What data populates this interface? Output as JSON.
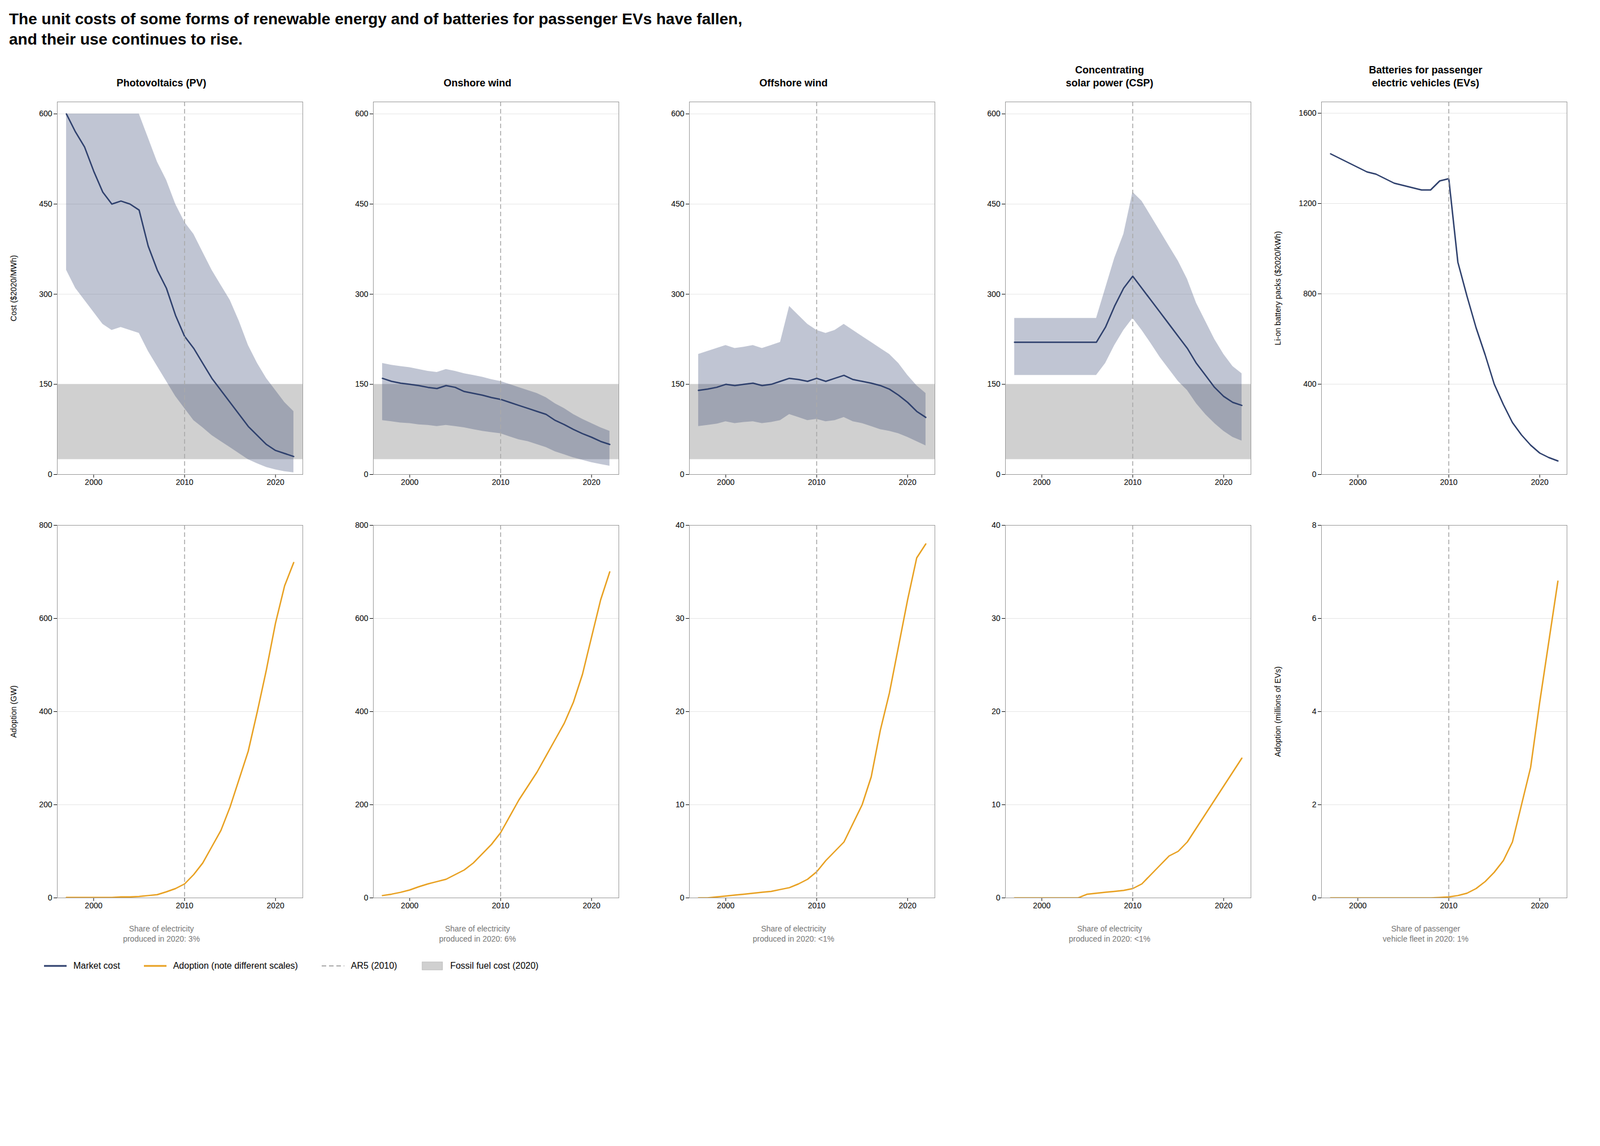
{
  "title": "The unit costs of some forms of renewable energy and of batteries for passenger EVs have fallen,\nand their use continues to rise.",
  "legend": "lower left",
  "chart_data": [
    {
      "type": "line",
      "title": "Photovoltaics (PV)",
      "ylabel": "Cost ($2020/MWh)",
      "x": [
        1997,
        1998,
        1999,
        2000,
        2001,
        2002,
        2003,
        2004,
        2005,
        2006,
        2007,
        2008,
        2009,
        2010,
        2011,
        2012,
        2013,
        2014,
        2015,
        2016,
        2017,
        2018,
        2019,
        2020,
        2021,
        2022
      ],
      "xlim": [
        1996,
        2023
      ],
      "xticks": [
        2000,
        2010,
        2020
      ],
      "ylim": [
        0,
        620
      ],
      "yticks": [
        0,
        150,
        300,
        450,
        600
      ],
      "grid": true,
      "series": [
        {
          "name": "Fossil fuel cost (2020)",
          "type": "band",
          "color": "#d0d0d0",
          "low": 25,
          "high": 150
        },
        {
          "name": "Market cost",
          "color": "#2d3f6c",
          "values": [
            600,
            570,
            545,
            505,
            470,
            450,
            455,
            450,
            440,
            380,
            340,
            310,
            265,
            230,
            210,
            185,
            160,
            140,
            120,
            100,
            80,
            65,
            50,
            40,
            35,
            30
          ],
          "upper": [
            600,
            600,
            600,
            600,
            600,
            600,
            600,
            600,
            600,
            560,
            520,
            490,
            450,
            420,
            400,
            370,
            340,
            315,
            290,
            255,
            215,
            185,
            160,
            140,
            120,
            105
          ],
          "lower": [
            340,
            310,
            290,
            270,
            250,
            240,
            245,
            240,
            235,
            205,
            180,
            155,
            130,
            110,
            90,
            78,
            65,
            55,
            45,
            35,
            25,
            18,
            12,
            8,
            5,
            3
          ]
        },
        {
          "name": "AR5 (2010)",
          "type": "rule",
          "color": "#aaaaaa",
          "line_style": "dashed",
          "x": 2010
        }
      ]
    },
    {
      "type": "line",
      "title": "Onshore wind",
      "x": [
        1997,
        1998,
        1999,
        2000,
        2001,
        2002,
        2003,
        2004,
        2005,
        2006,
        2007,
        2008,
        2009,
        2010,
        2011,
        2012,
        2013,
        2014,
        2015,
        2016,
        2017,
        2018,
        2019,
        2020,
        2021,
        2022
      ],
      "xlim": [
        1996,
        2023
      ],
      "xticks": [
        2000,
        2010,
        2020
      ],
      "ylim": [
        0,
        620
      ],
      "yticks": [
        0,
        150,
        300,
        450,
        600
      ],
      "grid": true,
      "series": [
        {
          "name": "Fossil fuel cost (2020)",
          "type": "band",
          "color": "#d0d0d0",
          "low": 25,
          "high": 150
        },
        {
          "name": "Market cost",
          "color": "#2d3f6c",
          "values": [
            160,
            155,
            152,
            150,
            148,
            145,
            143,
            148,
            145,
            138,
            135,
            132,
            128,
            125,
            120,
            115,
            110,
            105,
            100,
            90,
            83,
            75,
            68,
            62,
            55,
            50
          ],
          "upper": [
            185,
            182,
            180,
            178,
            175,
            172,
            170,
            175,
            172,
            168,
            165,
            162,
            158,
            155,
            150,
            145,
            140,
            135,
            128,
            118,
            110,
            100,
            92,
            85,
            78,
            72
          ],
          "lower": [
            90,
            88,
            86,
            85,
            83,
            82,
            80,
            82,
            80,
            78,
            75,
            72,
            70,
            68,
            63,
            58,
            55,
            50,
            45,
            38,
            33,
            28,
            24,
            20,
            17,
            14
          ]
        },
        {
          "name": "AR5 (2010)",
          "type": "rule",
          "color": "#aaaaaa",
          "line_style": "dashed",
          "x": 2010
        }
      ]
    },
    {
      "type": "line",
      "title": "Offshore wind",
      "x": [
        1997,
        1998,
        1999,
        2000,
        2001,
        2002,
        2003,
        2004,
        2005,
        2006,
        2007,
        2008,
        2009,
        2010,
        2011,
        2012,
        2013,
        2014,
        2015,
        2016,
        2017,
        2018,
        2019,
        2020,
        2021,
        2022
      ],
      "xlim": [
        1996,
        2023
      ],
      "xticks": [
        2000,
        2010,
        2020
      ],
      "ylim": [
        0,
        620
      ],
      "yticks": [
        0,
        150,
        300,
        450,
        600
      ],
      "grid": true,
      "series": [
        {
          "name": "Fossil fuel cost (2020)",
          "type": "band",
          "color": "#d0d0d0",
          "low": 25,
          "high": 150
        },
        {
          "name": "Market cost",
          "color": "#2d3f6c",
          "values": [
            140,
            142,
            145,
            150,
            148,
            150,
            152,
            148,
            150,
            155,
            160,
            158,
            155,
            160,
            155,
            160,
            165,
            158,
            155,
            152,
            148,
            142,
            132,
            120,
            105,
            95
          ],
          "upper": [
            200,
            205,
            210,
            215,
            210,
            212,
            215,
            210,
            215,
            220,
            280,
            265,
            250,
            240,
            235,
            240,
            250,
            240,
            230,
            220,
            210,
            200,
            185,
            165,
            148,
            135
          ],
          "lower": [
            80,
            82,
            84,
            88,
            85,
            87,
            88,
            85,
            87,
            90,
            100,
            95,
            90,
            92,
            88,
            90,
            95,
            88,
            85,
            80,
            75,
            72,
            68,
            62,
            55,
            48
          ]
        },
        {
          "name": "AR5 (2010)",
          "type": "rule",
          "color": "#aaaaaa",
          "line_style": "dashed",
          "x": 2010
        }
      ]
    },
    {
      "type": "line",
      "title": "Concentrating\nsolar power (CSP)",
      "x": [
        1997,
        1998,
        1999,
        2000,
        2001,
        2002,
        2003,
        2004,
        2005,
        2006,
        2007,
        2008,
        2009,
        2010,
        2011,
        2012,
        2013,
        2014,
        2015,
        2016,
        2017,
        2018,
        2019,
        2020,
        2021,
        2022
      ],
      "xlim": [
        1996,
        2023
      ],
      "xticks": [
        2000,
        2010,
        2020
      ],
      "ylim": [
        0,
        620
      ],
      "yticks": [
        0,
        150,
        300,
        450,
        600
      ],
      "grid": true,
      "series": [
        {
          "name": "Fossil fuel cost (2020)",
          "type": "band",
          "color": "#d0d0d0",
          "low": 25,
          "high": 150
        },
        {
          "name": "Market cost",
          "color": "#2d3f6c",
          "values": [
            220,
            220,
            220,
            220,
            220,
            220,
            220,
            220,
            220,
            220,
            245,
            280,
            310,
            330,
            310,
            290,
            270,
            250,
            230,
            210,
            185,
            165,
            145,
            130,
            120,
            115
          ],
          "upper": [
            260,
            260,
            260,
            260,
            260,
            260,
            260,
            260,
            260,
            260,
            310,
            360,
            400,
            470,
            455,
            430,
            405,
            380,
            355,
            325,
            285,
            255,
            225,
            200,
            180,
            168
          ],
          "lower": [
            165,
            165,
            165,
            165,
            165,
            165,
            165,
            165,
            165,
            165,
            185,
            215,
            240,
            260,
            240,
            218,
            195,
            175,
            155,
            140,
            118,
            100,
            85,
            72,
            62,
            56
          ]
        },
        {
          "name": "AR5 (2010)",
          "type": "rule",
          "color": "#aaaaaa",
          "line_style": "dashed",
          "x": 2010
        }
      ]
    },
    {
      "type": "line",
      "title": "Batteries for passenger\nelectric vehicles (EVs)",
      "ylabel": "Li-on battery packs ($2020/kWh)",
      "x": [
        1997,
        1998,
        1999,
        2000,
        2001,
        2002,
        2003,
        2004,
        2005,
        2006,
        2007,
        2008,
        2009,
        2010,
        2011,
        2012,
        2013,
        2014,
        2015,
        2016,
        2017,
        2018,
        2019,
        2020,
        2021,
        2022
      ],
      "xlim": [
        1996,
        2023
      ],
      "xticks": [
        2000,
        2010,
        2020
      ],
      "ylim": [
        0,
        1650
      ],
      "yticks": [
        0,
        400,
        800,
        1200,
        1600
      ],
      "grid": true,
      "series": [
        {
          "name": "Market cost",
          "color": "#2d3f6c",
          "values": [
            1420,
            1400,
            1380,
            1360,
            1340,
            1330,
            1310,
            1290,
            1280,
            1270,
            1260,
            1260,
            1300,
            1310,
            940,
            790,
            650,
            530,
            400,
            310,
            230,
            175,
            130,
            95,
            75,
            60
          ]
        },
        {
          "name": "AR5 (2010)",
          "type": "rule",
          "color": "#aaaaaa",
          "line_style": "dashed",
          "x": 2010
        }
      ]
    },
    {
      "type": "line",
      "ylabel": "Adoption (GW)",
      "annotation": "Share of electricity\nproduced in 2020: 3%",
      "x": [
        1997,
        1998,
        1999,
        2000,
        2001,
        2002,
        2003,
        2004,
        2005,
        2006,
        2007,
        2008,
        2009,
        2010,
        2011,
        2012,
        2013,
        2014,
        2015,
        2016,
        2017,
        2018,
        2019,
        2020,
        2021,
        2022
      ],
      "xlim": [
        1996,
        2023
      ],
      "xticks": [
        2000,
        2010,
        2020
      ],
      "ylim": [
        0,
        800
      ],
      "yticks": [
        0,
        200,
        400,
        600,
        800
      ],
      "grid": true,
      "series": [
        {
          "name": "Adoption (note different scales)",
          "color": "#e8a020",
          "values": [
            1,
            1,
            1,
            1,
            1,
            1,
            2,
            2,
            3,
            5,
            7,
            13,
            20,
            30,
            50,
            75,
            110,
            145,
            195,
            255,
            315,
            400,
            490,
            590,
            670,
            720
          ]
        },
        {
          "name": "AR5 (2010)",
          "type": "rule",
          "color": "#aaaaaa",
          "line_style": "dashed",
          "x": 2010
        }
      ]
    },
    {
      "type": "line",
      "annotation": "Share of electricity\nproduced in 2020: 6%",
      "x": [
        1997,
        1998,
        1999,
        2000,
        2001,
        2002,
        2003,
        2004,
        2005,
        2006,
        2007,
        2008,
        2009,
        2010,
        2011,
        2012,
        2013,
        2014,
        2015,
        2016,
        2017,
        2018,
        2019,
        2020,
        2021,
        2022
      ],
      "xlim": [
        1996,
        2023
      ],
      "xticks": [
        2000,
        2010,
        2020
      ],
      "ylim": [
        0,
        800
      ],
      "yticks": [
        0,
        200,
        400,
        600,
        800
      ],
      "grid": true,
      "series": [
        {
          "name": "Adoption (note different scales)",
          "color": "#e8a020",
          "values": [
            5,
            8,
            12,
            17,
            24,
            30,
            35,
            40,
            50,
            60,
            75,
            95,
            115,
            140,
            175,
            210,
            240,
            270,
            305,
            340,
            375,
            420,
            480,
            560,
            640,
            700
          ]
        },
        {
          "name": "AR5 (2010)",
          "type": "rule",
          "color": "#aaaaaa",
          "line_style": "dashed",
          "x": 2010
        }
      ]
    },
    {
      "type": "line",
      "annotation": "Share of electricity\nproduced in 2020: <1%",
      "x": [
        1997,
        1998,
        1999,
        2000,
        2001,
        2002,
        2003,
        2004,
        2005,
        2006,
        2007,
        2008,
        2009,
        2010,
        2011,
        2012,
        2013,
        2014,
        2015,
        2016,
        2017,
        2018,
        2019,
        2020,
        2021,
        2022
      ],
      "xlim": [
        1996,
        2023
      ],
      "xticks": [
        2000,
        2010,
        2020
      ],
      "ylim": [
        0,
        40
      ],
      "yticks": [
        0,
        10,
        20,
        30,
        40
      ],
      "grid": true,
      "series": [
        {
          "name": "Adoption (note different scales)",
          "color": "#e8a020",
          "values": [
            0,
            0,
            0.1,
            0.2,
            0.3,
            0.4,
            0.5,
            0.6,
            0.7,
            0.9,
            1.1,
            1.5,
            2.0,
            2.8,
            4.0,
            5.0,
            6.0,
            8.0,
            10.0,
            13.0,
            18.0,
            22.0,
            27.0,
            32.0,
            36.5,
            38.0
          ]
        },
        {
          "name": "AR5 (2010)",
          "type": "rule",
          "color": "#aaaaaa",
          "line_style": "dashed",
          "x": 2010
        }
      ]
    },
    {
      "type": "line",
      "annotation": "Share of electricity\nproduced in 2020: <1%",
      "x": [
        1997,
        1998,
        1999,
        2000,
        2001,
        2002,
        2003,
        2004,
        2005,
        2006,
        2007,
        2008,
        2009,
        2010,
        2011,
        2012,
        2013,
        2014,
        2015,
        2016,
        2017,
        2018,
        2019,
        2020,
        2021,
        2022
      ],
      "xlim": [
        1996,
        2023
      ],
      "xticks": [
        2000,
        2010,
        2020
      ],
      "ylim": [
        0,
        40
      ],
      "yticks": [
        0,
        10,
        20,
        30,
        40
      ],
      "grid": true,
      "series": [
        {
          "name": "Adoption (note different scales)",
          "color": "#e8a020",
          "values": [
            0,
            0,
            0,
            0,
            0,
            0,
            0,
            0,
            0.4,
            0.5,
            0.6,
            0.7,
            0.8,
            1.0,
            1.5,
            2.5,
            3.5,
            4.5,
            5.0,
            6.0,
            7.5,
            9.0,
            10.5,
            12.0,
            13.5,
            15.0
          ]
        },
        {
          "name": "AR5 (2010)",
          "type": "rule",
          "color": "#aaaaaa",
          "line_style": "dashed",
          "x": 2010
        }
      ]
    },
    {
      "type": "line",
      "ylabel": "Adoption (millions of EVs)",
      "annotation": "Share of passenger\nvehicle fleet in 2020: 1%",
      "x": [
        1997,
        1998,
        1999,
        2000,
        2001,
        2002,
        2003,
        2004,
        2005,
        2006,
        2007,
        2008,
        2009,
        2010,
        2011,
        2012,
        2013,
        2014,
        2015,
        2016,
        2017,
        2018,
        2019,
        2020,
        2021,
        2022
      ],
      "xlim": [
        1996,
        2023
      ],
      "xticks": [
        2000,
        2010,
        2020
      ],
      "ylim": [
        0,
        8
      ],
      "yticks": [
        0,
        2,
        4,
        6,
        8
      ],
      "grid": true,
      "series": [
        {
          "name": "Adoption (note different scales)",
          "color": "#e8a020",
          "values": [
            0,
            0,
            0,
            0,
            0,
            0,
            0,
            0,
            0,
            0,
            0,
            0,
            0.01,
            0.02,
            0.05,
            0.1,
            0.2,
            0.35,
            0.55,
            0.8,
            1.2,
            2.0,
            2.8,
            4.2,
            5.5,
            6.8
          ]
        },
        {
          "name": "AR5 (2010)",
          "type": "rule",
          "color": "#aaaaaa",
          "line_style": "dashed",
          "x": 2010
        }
      ]
    }
  ]
}
